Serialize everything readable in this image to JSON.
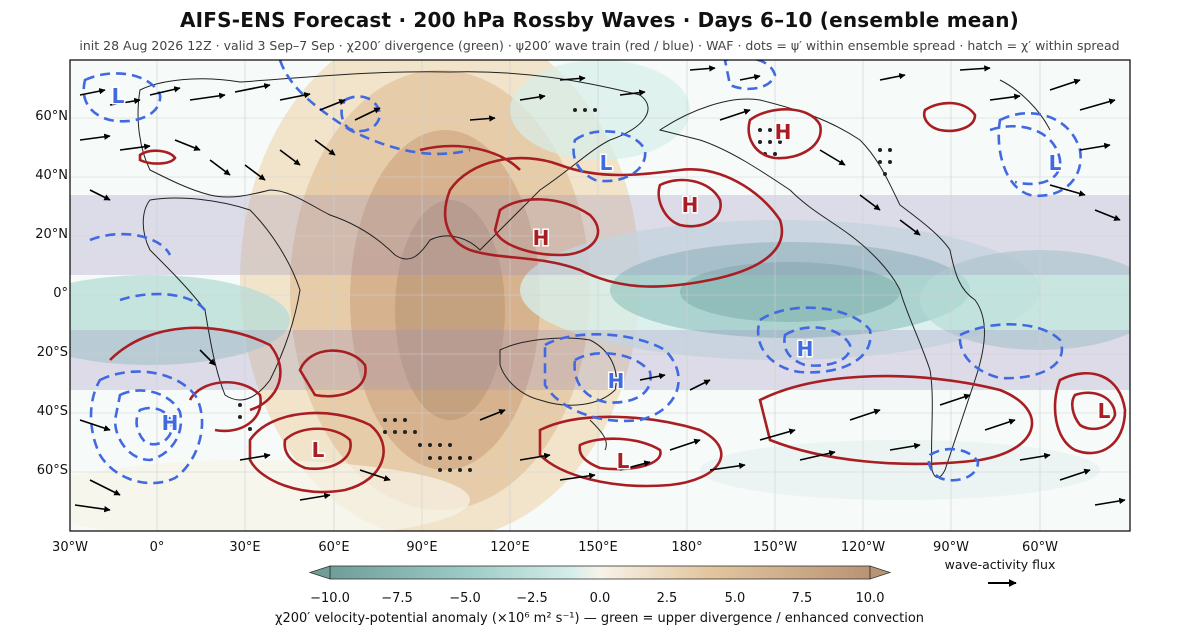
{
  "header": {
    "title": "AIFS-ENS Forecast · 200 hPa Rossby Waves · Days 6–10 (ensemble mean)",
    "subtitle": "init 28 Aug 2026 12Z · valid 3 Sep–7 Sep · χ200′ divergence (green) · ψ200′ wave train (red / blue) · WAF · dots = ψ′ within ensemble spread · hatch = χ′ within spread"
  },
  "axes": {
    "lat_labels": [
      "60°N",
      "40°N",
      "20°N",
      "0°",
      "20°S",
      "40°S",
      "60°S"
    ],
    "lon_labels": [
      "30°W",
      "0°",
      "30°E",
      "60°E",
      "90°E",
      "120°E",
      "150°E",
      "180°",
      "150°W",
      "120°W",
      "90°W",
      "60°W"
    ]
  },
  "colorbar": {
    "ticks": [
      "−10.0",
      "−7.5",
      "−5.0",
      "−2.5",
      "0.0",
      "2.5",
      "5.0",
      "7.5",
      "10.0"
    ],
    "label": "χ200′ velocity-potential anomaly  (×10⁶ m² s⁻¹)   —   green = upper divergence / enhanced convection",
    "colors": [
      "#6f9e98",
      "#86b5b0",
      "#9ccac4",
      "#b6dcd6",
      "#d6eeea",
      "#f7f3e8",
      "#f0dfc2",
      "#e3c6a0",
      "#d0ab85",
      "#b89475"
    ]
  },
  "legend": {
    "waf_label": "wave-activity flux"
  },
  "centers": [
    {
      "label": "L",
      "type": "low"
    },
    {
      "label": "H",
      "type": "high"
    },
    {
      "label": "H",
      "type": "high"
    },
    {
      "label": "H",
      "type": "high"
    },
    {
      "label": "L",
      "type": "low"
    },
    {
      "label": "L",
      "type": "low"
    },
    {
      "label": "H",
      "type": "high"
    },
    {
      "label": "H",
      "type": "high"
    },
    {
      "label": "H",
      "type": "high"
    },
    {
      "label": "L",
      "type": "low"
    },
    {
      "label": "L",
      "type": "low"
    },
    {
      "label": "L",
      "type": "low"
    }
  ],
  "colors": {
    "high": "#a81e22",
    "low": "#4169e1",
    "arrow": "#000000",
    "coast": "#222222"
  }
}
